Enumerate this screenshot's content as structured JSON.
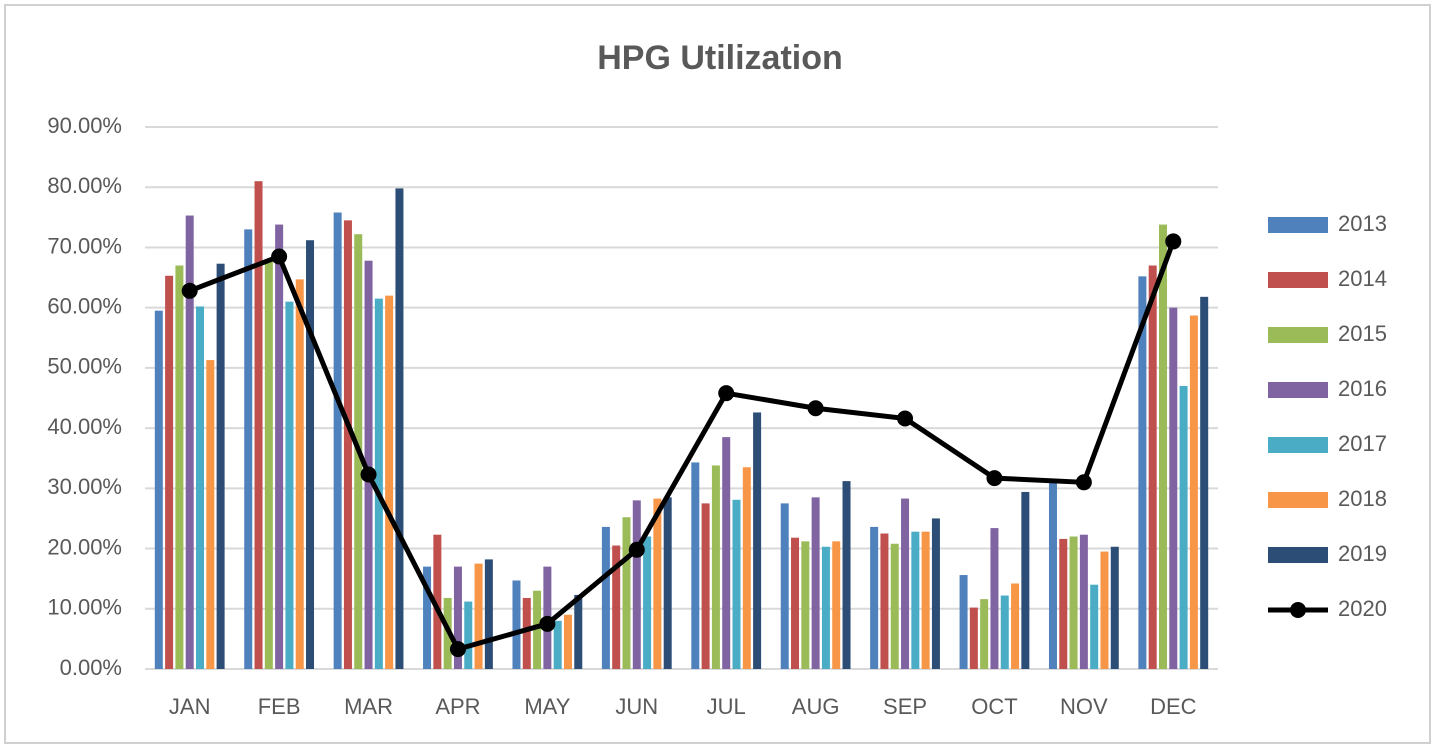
{
  "chart_data": {
    "type": "bar",
    "title": "HPG Utilization",
    "categories": [
      "JAN",
      "FEB",
      "MAR",
      "APR",
      "MAY",
      "JUN",
      "JUL",
      "AUG",
      "SEP",
      "OCT",
      "NOV",
      "DEC"
    ],
    "series": [
      {
        "name": "2013",
        "color": "#4f81bd",
        "values": [
          59.5,
          73,
          75.8,
          17,
          14.7,
          23.6,
          34.3,
          27.5,
          23.6,
          15.6,
          31,
          65.2
        ]
      },
      {
        "name": "2014",
        "color": "#c0504d",
        "values": [
          65.3,
          81,
          74.5,
          22.3,
          11.8,
          20.5,
          27.5,
          21.8,
          22.5,
          10.2,
          21.6,
          67
        ]
      },
      {
        "name": "2015",
        "color": "#9bbb59",
        "values": [
          67,
          68,
          72.2,
          11.8,
          13,
          25.2,
          33.8,
          21.2,
          20.8,
          11.6,
          22,
          73.8
        ]
      },
      {
        "name": "2016",
        "color": "#8064a2",
        "values": [
          75.3,
          73.8,
          67.8,
          17,
          17,
          28,
          38.5,
          28.5,
          28.3,
          23.4,
          22.3,
          60
        ]
      },
      {
        "name": "2017",
        "color": "#4bacc6",
        "values": [
          60.2,
          61,
          61.5,
          11.2,
          8,
          22,
          28.1,
          20.3,
          22.8,
          12.2,
          14,
          47
        ]
      },
      {
        "name": "2018",
        "color": "#f79646",
        "values": [
          51.3,
          64.7,
          62,
          17.5,
          9,
          28.3,
          33.5,
          21.2,
          22.8,
          14.2,
          19.5,
          58.7
        ]
      },
      {
        "name": "2019",
        "color": "#2c4d75",
        "values": [
          67.3,
          71.2,
          79.8,
          18.2,
          12.3,
          28.5,
          42.6,
          31.2,
          25,
          29.4,
          20.3,
          61.8
        ]
      },
      {
        "name": "2020",
        "color": "#000000",
        "type": "line",
        "values": [
          62.8,
          68.5,
          32.3,
          3.3,
          7.5,
          19.8,
          45.8,
          43.3,
          41.6,
          31.7,
          31,
          71
        ]
      }
    ],
    "ylim": [
      0,
      90
    ],
    "yticks": [
      {
        "value": 0,
        "label": "0.00%"
      },
      {
        "value": 10,
        "label": "10.00%"
      },
      {
        "value": 20,
        "label": "20.00%"
      },
      {
        "value": 30,
        "label": "30.00%"
      },
      {
        "value": 40,
        "label": "40.00%"
      },
      {
        "value": 50,
        "label": "50.00%"
      },
      {
        "value": 60,
        "label": "60.00%"
      },
      {
        "value": 70,
        "label": "70.00%"
      },
      {
        "value": 80,
        "label": "80.00%"
      },
      {
        "value": 90,
        "label": "90.00%"
      }
    ],
    "grid": true,
    "legend": "right"
  }
}
